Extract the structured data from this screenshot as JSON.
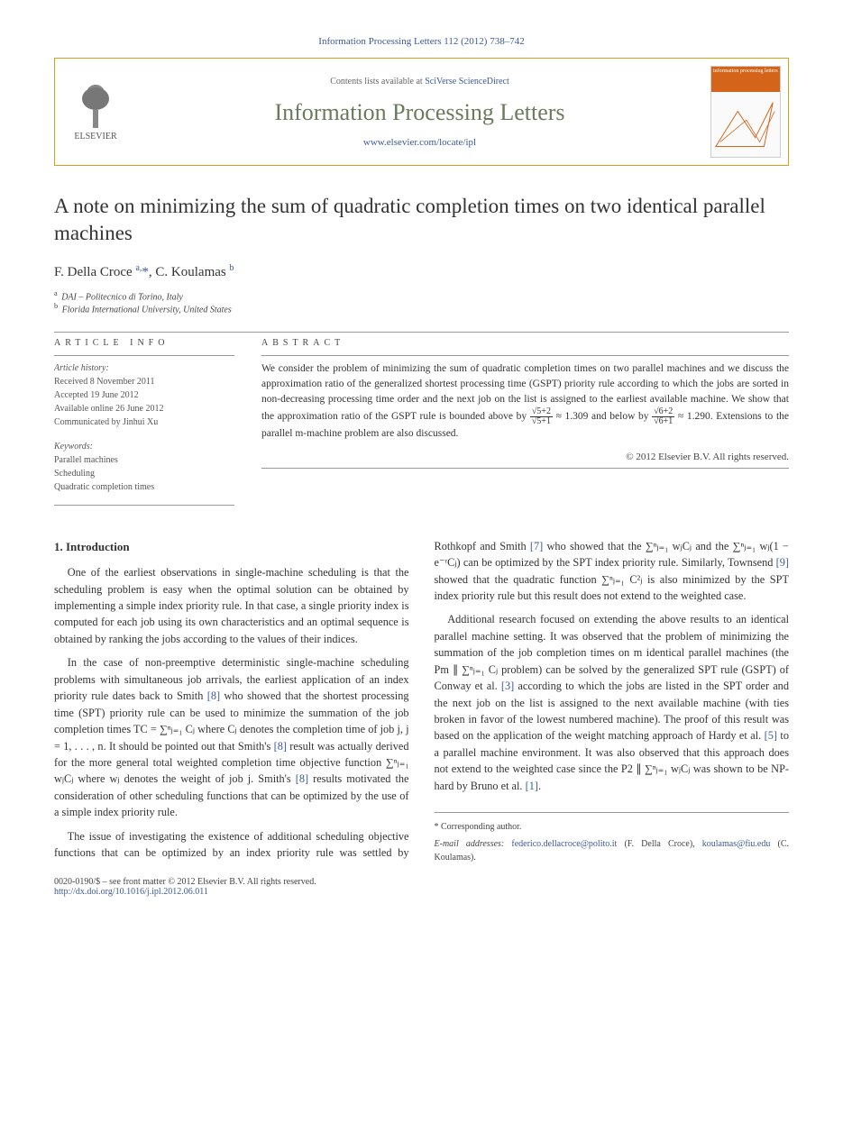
{
  "citation": "Information Processing Letters 112 (2012) 738–742",
  "header": {
    "contents_prefix": "Contents lists available at ",
    "contents_link": "SciVerse ScienceDirect",
    "journal": "Information Processing Letters",
    "journal_url": "www.elsevier.com/locate/ipl",
    "publisher": "ELSEVIER",
    "cover_label": "information processing letters"
  },
  "title": "A note on minimizing the sum of quadratic completion times on two identical parallel machines",
  "authors_html": "F. Della Croce <sup>a,</sup><a href=\"#\">*</a>, C. Koulamas <sup>b</sup>",
  "affiliations": [
    {
      "sup": "a",
      "text": "DAI – Politecnico di Torino, Italy"
    },
    {
      "sup": "b",
      "text": "Florida International University, United States"
    }
  ],
  "article_info": {
    "heading": "ARTICLE INFO",
    "history_label": "Article history:",
    "history": [
      "Received 8 November 2011",
      "Accepted 19 June 2012",
      "Available online 26 June 2012",
      "Communicated by Jinhui Xu"
    ],
    "keywords_label": "Keywords:",
    "keywords": [
      "Parallel machines",
      "Scheduling",
      "Quadratic completion times"
    ]
  },
  "abstract": {
    "heading": "ABSTRACT",
    "text_before_frac1": "We consider the problem of minimizing the sum of quadratic completion times on two parallel machines and we discuss the approximation ratio of the generalized shortest processing time (GSPT) priority rule according to which the jobs are sorted in non-decreasing processing time order and the next job on the list is assigned to the earliest available machine. We show that the approximation ratio of the GSPT rule is bounded above by ",
    "frac1": {
      "num": "√5+2",
      "den": "√5+1",
      "approx": " ≈ 1.309"
    },
    "mid": " and below by ",
    "frac2": {
      "num": "√6+2",
      "den": "√6+1",
      "approx": " ≈ 1.290"
    },
    "text_after": ". Extensions to the parallel m-machine problem are also discussed.",
    "copyright": "© 2012 Elsevier B.V. All rights reserved."
  },
  "body": {
    "section1_heading": "1. Introduction",
    "p1": "One of the earliest observations in single-machine scheduling is that the scheduling problem is easy when the optimal solution can be obtained by implementing a simple index priority rule. In that case, a single priority index is computed for each job using its own characteristics and an optimal sequence is obtained by ranking the jobs according to the values of their indices.",
    "p2_a": "In the case of non-preemptive deterministic single-machine scheduling problems with simultaneous job arrivals, the earliest application of an index priority rule dates back to Smith ",
    "p2_ref1": "[8]",
    "p2_b": " who showed that the shortest processing time (SPT) priority rule can be used to minimize the summation of the job completion times TC = ∑ⁿⱼ₌₁ Cⱼ where Cⱼ denotes the completion time of job j, j = 1, . . . , n. It should be pointed out that Smith's ",
    "p2_ref2": "[8]",
    "p2_c": " result was actually derived for the more general total weighted completion time objective function ∑ⁿⱼ₌₁ wⱼCⱼ where wⱼ denotes the weight of job j. Smith's ",
    "p2_ref3": "[8]",
    "p2_d": " results motivated the consideration of other scheduling functions that can be optimized by the use of a simple index priority rule.",
    "p3_a": "The issue of investigating the existence of additional scheduling objective functions that can be optimized by an index priority rule was settled by Rothkopf and Smith ",
    "p3_ref1": "[7]",
    "p3_b": " who showed that the ∑ⁿⱼ₌₁ wⱼCⱼ and the ∑ⁿⱼ₌₁ wⱼ(1 − e⁻ʳCⱼ) can be optimized by the SPT index priority rule. Similarly, Townsend ",
    "p3_ref2": "[9]",
    "p3_c": " showed that the quadratic function ∑ⁿⱼ₌₁ C²ⱼ is also minimized by the SPT index priority rule but this result does not extend to the weighted case.",
    "p4_a": "Additional research focused on extending the above results to an identical parallel machine setting. It was observed that the problem of minimizing the summation of the job completion times on m identical parallel machines (the Pm ∥ ∑ⁿⱼ₌₁ Cⱼ problem) can be solved by the generalized SPT rule (GSPT) of Conway et al. ",
    "p4_ref1": "[3]",
    "p4_b": " according to which the jobs are listed in the SPT order and the next job on the list is assigned to the next available machine (with ties broken in favor of the lowest numbered machine). The proof of this result was based on the application of the weight matching approach of Hardy et al. ",
    "p4_ref2": "[5]",
    "p4_c": " to a parallel machine environment. It was also observed that this approach does not extend to the weighted case since the P2 ∥ ∑ⁿⱼ₌₁ wⱼCⱼ was shown to be NP-hard by Bruno et al. ",
    "p4_ref3": "[1]",
    "p4_d": "."
  },
  "footer": {
    "corr": "* Corresponding author.",
    "emails_label": "E-mail addresses: ",
    "email1": "federico.dellacroce@polito.it",
    "email1_who": " (F. Della Croce), ",
    "email2": "koulamas@fiu.edu",
    "email2_who": " (C. Koulamas)."
  },
  "bottom": {
    "left": "0020-0190/$ – see front matter   © 2012 Elsevier B.V. All rights reserved.",
    "doi": "http://dx.doi.org/10.1016/j.ipl.2012.06.011"
  },
  "colors": {
    "accent_orange": "#d4641a",
    "accent_olive": "#6b7a5a",
    "link_blue": "#3b5998",
    "border_gold": "#d4a017"
  }
}
